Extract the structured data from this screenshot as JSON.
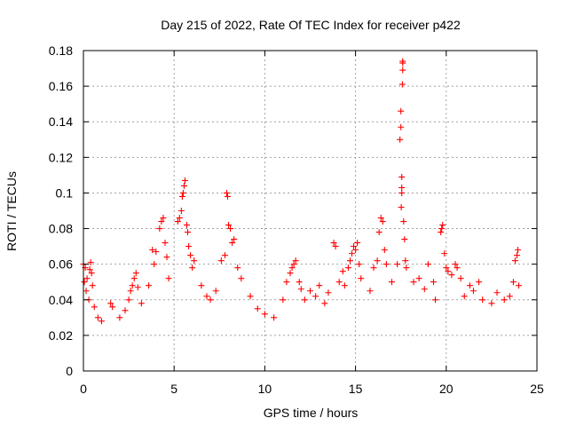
{
  "chart_data": {
    "type": "scatter",
    "title": "Day 215 of 2022, Rate Of TEC Index for receiver p422",
    "xlabel": "GPS time / hours",
    "ylabel": "ROTI / TECUs",
    "xlim": [
      0,
      25
    ],
    "ylim": [
      0,
      0.18
    ],
    "xticks": [
      0,
      5,
      10,
      15,
      20,
      25
    ],
    "xtick_labels": [
      "0",
      "5",
      "10",
      "15",
      "20",
      "25"
    ],
    "yticks": [
      0,
      0.02,
      0.04,
      0.06,
      0.08,
      0.1,
      0.12,
      0.14,
      0.16,
      0.18
    ],
    "ytick_labels": [
      "0",
      "0.02",
      "0.04",
      "0.06",
      "0.08",
      "0.1",
      "0.12",
      "0.14",
      "0.16",
      "0.18"
    ],
    "grid": true,
    "marker": "+",
    "color": "#ff0000",
    "series": [
      {
        "name": "ROTI",
        "points": [
          [
            0.0,
            0.06
          ],
          [
            0.05,
            0.05
          ],
          [
            0.1,
            0.058
          ],
          [
            0.15,
            0.045
          ],
          [
            0.2,
            0.052
          ],
          [
            0.3,
            0.04
          ],
          [
            0.35,
            0.057
          ],
          [
            0.4,
            0.061
          ],
          [
            0.45,
            0.055
          ],
          [
            0.5,
            0.048
          ],
          [
            0.6,
            0.036
          ],
          [
            0.8,
            0.03
          ],
          [
            1.0,
            0.028
          ],
          [
            1.5,
            0.038
          ],
          [
            1.6,
            0.036
          ],
          [
            2.0,
            0.03
          ],
          [
            2.3,
            0.034
          ],
          [
            2.5,
            0.04
          ],
          [
            2.6,
            0.045
          ],
          [
            2.7,
            0.048
          ],
          [
            2.8,
            0.052
          ],
          [
            2.9,
            0.055
          ],
          [
            3.0,
            0.047
          ],
          [
            3.2,
            0.038
          ],
          [
            3.6,
            0.048
          ],
          [
            3.8,
            0.068
          ],
          [
            3.9,
            0.06
          ],
          [
            4.0,
            0.067
          ],
          [
            4.2,
            0.08
          ],
          [
            4.3,
            0.084
          ],
          [
            4.4,
            0.086
          ],
          [
            4.5,
            0.072
          ],
          [
            4.6,
            0.064
          ],
          [
            4.7,
            0.052
          ],
          [
            5.2,
            0.084
          ],
          [
            5.3,
            0.086
          ],
          [
            5.4,
            0.09
          ],
          [
            5.45,
            0.098
          ],
          [
            5.5,
            0.1
          ],
          [
            5.55,
            0.104
          ],
          [
            5.6,
            0.107
          ],
          [
            5.7,
            0.082
          ],
          [
            5.75,
            0.078
          ],
          [
            5.8,
            0.07
          ],
          [
            5.9,
            0.065
          ],
          [
            6.0,
            0.058
          ],
          [
            6.1,
            0.062
          ],
          [
            6.5,
            0.048
          ],
          [
            6.8,
            0.042
          ],
          [
            7.0,
            0.04
          ],
          [
            7.3,
            0.045
          ],
          [
            7.6,
            0.062
          ],
          [
            7.8,
            0.065
          ],
          [
            7.9,
            0.1
          ],
          [
            7.95,
            0.098
          ],
          [
            8.0,
            0.082
          ],
          [
            8.1,
            0.08
          ],
          [
            8.2,
            0.072
          ],
          [
            8.3,
            0.074
          ],
          [
            8.5,
            0.058
          ],
          [
            8.7,
            0.052
          ],
          [
            9.2,
            0.042
          ],
          [
            9.6,
            0.035
          ],
          [
            10.0,
            0.032
          ],
          [
            10.5,
            0.03
          ],
          [
            11.0,
            0.04
          ],
          [
            11.2,
            0.05
          ],
          [
            11.4,
            0.055
          ],
          [
            11.5,
            0.058
          ],
          [
            11.6,
            0.06
          ],
          [
            11.7,
            0.062
          ],
          [
            11.9,
            0.05
          ],
          [
            12.0,
            0.046
          ],
          [
            12.2,
            0.04
          ],
          [
            12.5,
            0.045
          ],
          [
            12.8,
            0.042
          ],
          [
            13.0,
            0.048
          ],
          [
            13.3,
            0.038
          ],
          [
            13.5,
            0.044
          ],
          [
            13.8,
            0.072
          ],
          [
            13.9,
            0.07
          ],
          [
            14.1,
            0.05
          ],
          [
            14.3,
            0.056
          ],
          [
            14.4,
            0.048
          ],
          [
            14.6,
            0.058
          ],
          [
            14.7,
            0.062
          ],
          [
            14.8,
            0.066
          ],
          [
            14.9,
            0.07
          ],
          [
            15.0,
            0.068
          ],
          [
            15.1,
            0.072
          ],
          [
            15.2,
            0.06
          ],
          [
            15.3,
            0.052
          ],
          [
            15.8,
            0.045
          ],
          [
            16.0,
            0.058
          ],
          [
            16.2,
            0.062
          ],
          [
            16.3,
            0.078
          ],
          [
            16.4,
            0.086
          ],
          [
            16.5,
            0.084
          ],
          [
            16.6,
            0.068
          ],
          [
            16.7,
            0.06
          ],
          [
            17.0,
            0.05
          ],
          [
            17.3,
            0.06
          ],
          [
            17.45,
            0.13
          ],
          [
            17.5,
            0.137
          ],
          [
            17.5,
            0.146
          ],
          [
            17.52,
            0.092
          ],
          [
            17.55,
            0.1
          ],
          [
            17.55,
            0.103
          ],
          [
            17.55,
            0.109
          ],
          [
            17.58,
            0.161
          ],
          [
            17.6,
            0.169
          ],
          [
            17.6,
            0.173
          ],
          [
            17.6,
            0.174
          ],
          [
            17.65,
            0.084
          ],
          [
            17.7,
            0.074
          ],
          [
            17.75,
            0.062
          ],
          [
            17.8,
            0.058
          ],
          [
            18.2,
            0.05
          ],
          [
            18.5,
            0.052
          ],
          [
            18.8,
            0.046
          ],
          [
            19.0,
            0.06
          ],
          [
            19.3,
            0.05
          ],
          [
            19.4,
            0.04
          ],
          [
            19.7,
            0.078
          ],
          [
            19.75,
            0.08
          ],
          [
            19.8,
            0.082
          ],
          [
            19.9,
            0.066
          ],
          [
            20.0,
            0.058
          ],
          [
            20.1,
            0.056
          ],
          [
            20.3,
            0.054
          ],
          [
            20.5,
            0.06
          ],
          [
            20.6,
            0.058
          ],
          [
            20.8,
            0.052
          ],
          [
            21.0,
            0.042
          ],
          [
            21.3,
            0.048
          ],
          [
            21.5,
            0.045
          ],
          [
            21.8,
            0.05
          ],
          [
            22.0,
            0.04
          ],
          [
            22.5,
            0.038
          ],
          [
            22.8,
            0.044
          ],
          [
            23.2,
            0.04
          ],
          [
            23.5,
            0.042
          ],
          [
            23.7,
            0.05
          ],
          [
            23.8,
            0.062
          ],
          [
            23.9,
            0.065
          ],
          [
            23.95,
            0.068
          ],
          [
            24.0,
            0.048
          ]
        ]
      }
    ]
  }
}
